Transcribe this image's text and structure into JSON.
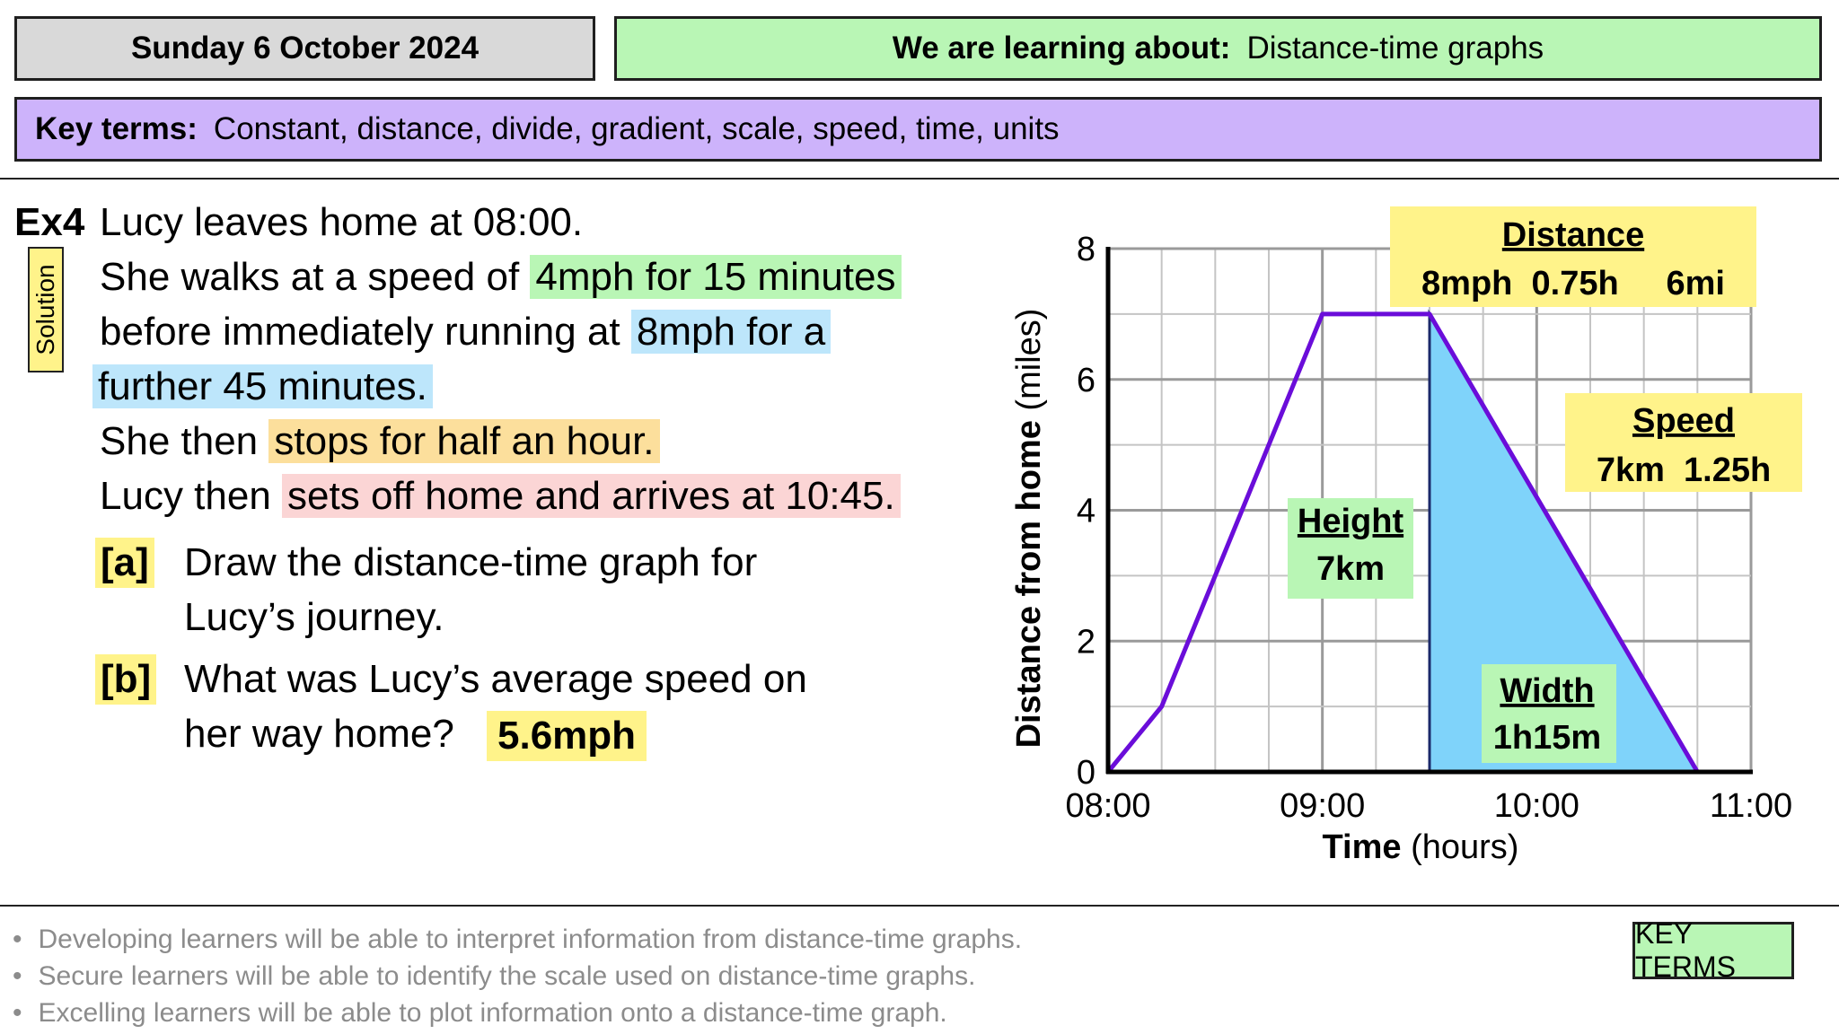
{
  "header": {
    "date": "Sunday 6 October 2024",
    "learning_label": "We are learning about:",
    "learning_topic": "Distance-time graphs",
    "key_terms_label": "Key terms:",
    "key_terms": "Constant, distance, divide, gradient, scale, speed, time, units"
  },
  "question": {
    "label": "Ex4",
    "solution_tag": "Solution",
    "lines": [
      {
        "plain": "Lucy leaves home at 08:00.",
        "hl": ""
      },
      {
        "plain": "She walks at a speed of ",
        "hl": "4mph for 15 minutes"
      },
      {
        "plain": "before immediately running at ",
        "hl": "8mph for a"
      },
      {
        "plain": "",
        "hl": "further 45 minutes."
      },
      {
        "plain": "She then ",
        "hl": "stops for half an hour."
      },
      {
        "plain": "Lucy then ",
        "hl": "sets off home and arrives at 10:45."
      }
    ],
    "parts": [
      {
        "label": "[a]",
        "line1": "Draw the distance-time graph for",
        "line2": "Lucy’s journey."
      },
      {
        "label": "[b]",
        "line1": "What was Lucy’s average speed on",
        "line2": "her way home?"
      }
    ],
    "answer": "5.6mph"
  },
  "chart_data": {
    "type": "line",
    "xlabel_bold": "Time",
    "xlabel_rest": "(hours)",
    "ylabel_bold": "Distance from home",
    "ylabel_rest": "(miles)",
    "x_ticks": [
      "08:00",
      "09:00",
      "10:00",
      "11:00"
    ],
    "y_ticks": [
      0,
      2,
      4,
      6,
      8
    ],
    "xlim_hours": [
      0,
      3
    ],
    "ylim": [
      0,
      8
    ],
    "grid": true,
    "series": [
      {
        "x_hours": [
          0,
          0.25,
          1,
          1.5,
          2.75
        ],
        "y": [
          0,
          1,
          7,
          7,
          0
        ],
        "color": "#6a0dd9"
      }
    ],
    "shaded_triangle": {
      "x_hours": [
        1.5,
        1.5,
        2.75
      ],
      "y": [
        7,
        0,
        0
      ],
      "color": "#7fd3fa"
    },
    "annotations": {
      "distance": {
        "title": "Distance",
        "text": "8mph  0.75h     6mi"
      },
      "speed": {
        "title": "Speed",
        "text": "7km  1.25h"
      },
      "height": {
        "title": "Height",
        "text": "7km"
      },
      "width": {
        "title": "Width",
        "text": "1h15m"
      }
    }
  },
  "objectives": [
    "Developing learners will be able to interpret information from distance-time graphs.",
    "Secure learners will be able to identify the scale used on distance-time graphs.",
    "Excelling learners will be able to plot information onto a distance-time graph."
  ],
  "key_terms_button": "KEY TERMS",
  "colors": {
    "green": "#b9f6b5",
    "purple": "#cdb3fb",
    "yellow": "#fff38a",
    "blue": "#bde6fb",
    "orange": "#fcdf9c",
    "pink": "#fbd5d5",
    "line": "#6a0dd9"
  }
}
